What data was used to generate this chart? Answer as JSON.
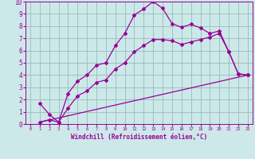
{
  "bg_color": "#cce8e8",
  "line_color": "#990099",
  "grid_color": "#99bbbb",
  "xlabel": "Windchill (Refroidissement éolien,°C)",
  "xlim": [
    -0.5,
    23.5
  ],
  "ylim": [
    0,
    10
  ],
  "xticks": [
    0,
    1,
    2,
    3,
    4,
    5,
    6,
    7,
    8,
    9,
    10,
    11,
    12,
    13,
    14,
    15,
    16,
    17,
    18,
    19,
    20,
    21,
    22,
    23
  ],
  "yticks": [
    0,
    1,
    2,
    3,
    4,
    5,
    6,
    7,
    8,
    9,
    10
  ],
  "curve1_x": [
    1,
    2,
    3,
    4,
    5,
    6,
    7,
    8,
    9,
    10,
    11,
    12,
    13,
    14,
    15,
    16,
    17,
    18,
    19,
    20,
    21,
    22,
    23
  ],
  "curve1_y": [
    1.7,
    0.8,
    0.15,
    2.5,
    3.5,
    4.0,
    4.8,
    5.0,
    6.4,
    7.4,
    8.9,
    9.4,
    10.0,
    9.45,
    8.2,
    7.9,
    8.15,
    7.85,
    7.4,
    7.6,
    5.9,
    4.1,
    4.0
  ],
  "curve2_x": [
    1,
    23
  ],
  "curve2_y": [
    0.15,
    4.0
  ],
  "curve3_x": [
    1,
    2,
    3,
    4,
    5,
    6,
    7,
    8,
    9,
    10,
    11,
    12,
    13,
    14,
    15,
    16,
    17,
    18,
    19,
    20,
    21,
    22,
    23
  ],
  "curve3_y": [
    0.15,
    0.35,
    0.15,
    1.3,
    2.3,
    2.7,
    3.4,
    3.6,
    4.5,
    5.0,
    5.9,
    6.4,
    6.9,
    6.9,
    6.8,
    6.5,
    6.7,
    6.9,
    7.1,
    7.4,
    5.9,
    4.1,
    4.0
  ],
  "xlabel_fontsize": 5.5,
  "tick_fontsize_x": 4.0,
  "tick_fontsize_y": 5.5
}
